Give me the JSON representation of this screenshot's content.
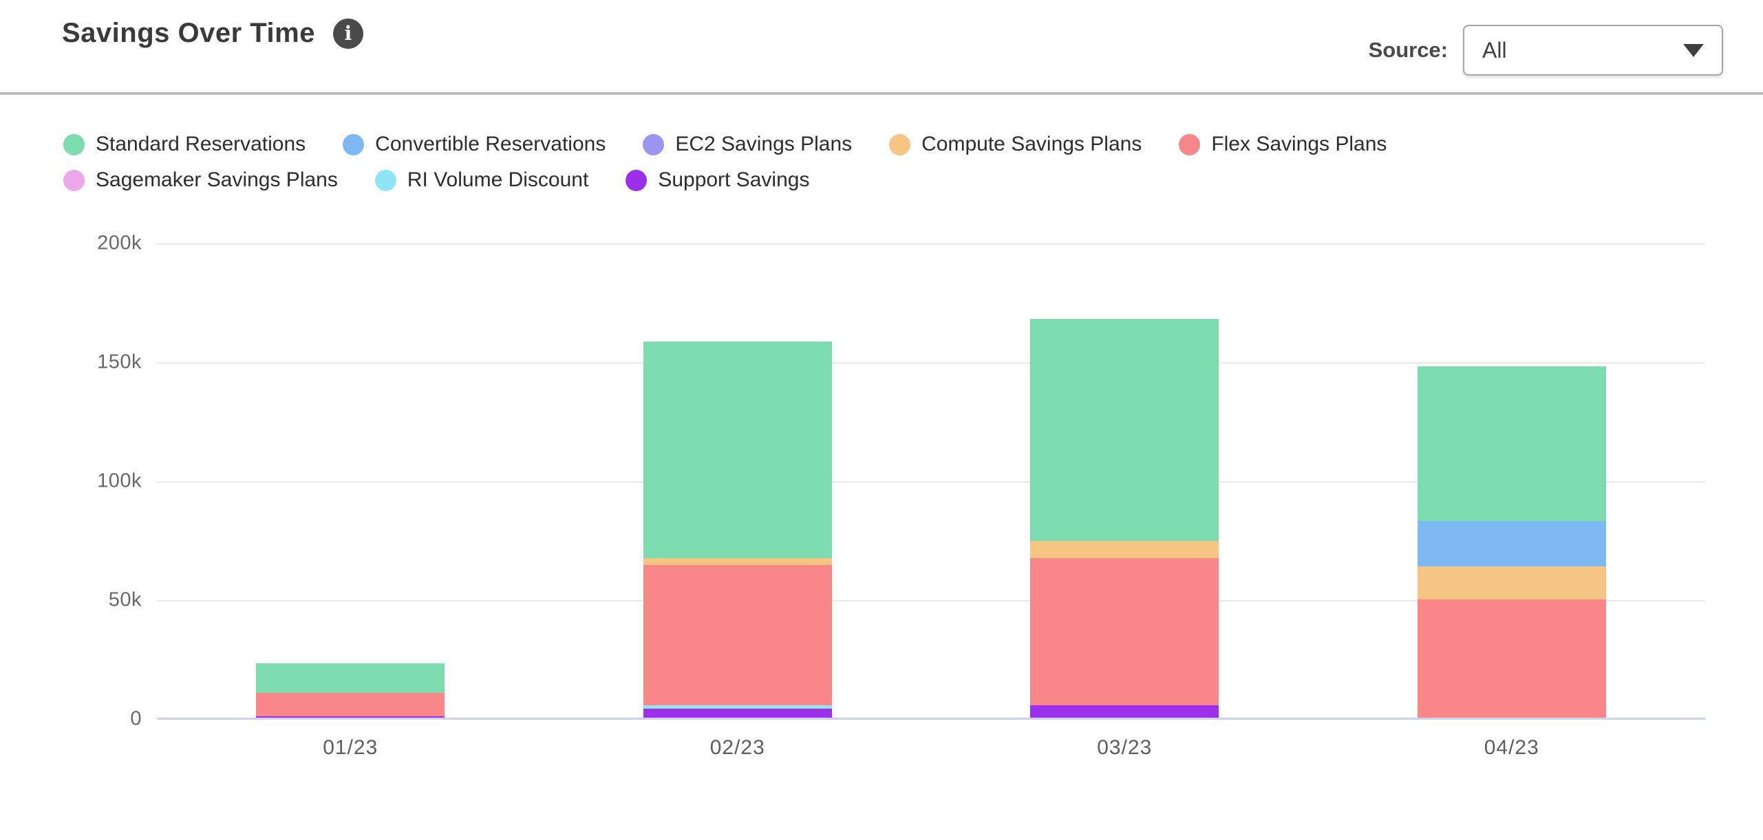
{
  "header": {
    "title": "Savings Over Time",
    "source_label": "Source:",
    "source_value": "All"
  },
  "legend_order": [
    "Standard Reservations",
    "Convertible Reservations",
    "EC2 Savings Plans",
    "Compute Savings Plans",
    "Flex Savings Plans",
    "Sagemaker Savings Plans",
    "RI Volume Discount",
    "Support Savings"
  ],
  "chart_data": {
    "type": "bar",
    "stacked": true,
    "title": "Savings Over Time",
    "categories": [
      "01/23",
      "02/23",
      "03/23",
      "04/23"
    ],
    "values_unit": "thousands",
    "stack_order": "bottom-to-top",
    "series": [
      {
        "name": "Support Savings",
        "color": "#9b2feb",
        "values": [
          0.8,
          4,
          5.5,
          0
        ]
      },
      {
        "name": "RI Volume Discount",
        "color": "#8fe5f5",
        "values": [
          0,
          1.5,
          0,
          0
        ]
      },
      {
        "name": "Flex Savings Plans",
        "color": "#f98789",
        "values": [
          10,
          59,
          62,
          50
        ]
      },
      {
        "name": "Compute Savings Plans",
        "color": "#f6c583",
        "values": [
          0,
          3,
          7,
          14
        ]
      },
      {
        "name": "Convertible Reservations",
        "color": "#7db8f2",
        "values": [
          0,
          0,
          0,
          19
        ]
      },
      {
        "name": "EC2 Savings Plans",
        "color": "#9b95f2",
        "values": [
          0,
          0,
          0,
          0
        ]
      },
      {
        "name": "Sagemaker Savings Plans",
        "color": "#efa7ec",
        "values": [
          0,
          0,
          0,
          0
        ]
      },
      {
        "name": "Standard Reservations",
        "color": "#7cdcb0",
        "values": [
          12.4,
          91,
          93.5,
          65
        ]
      }
    ],
    "totals_thousands": [
      23.2,
      158.5,
      168,
      148
    ],
    "y_ticks": [
      "200k",
      "150k",
      "100k",
      "50k",
      "0"
    ],
    "ylim_thousands": [
      0,
      200
    ],
    "grid": true,
    "legend_position": "top",
    "xlabel": "",
    "ylabel": ""
  },
  "colors": {
    "axis_line": "#cdd2ee",
    "gridline": "#e9e9e9",
    "divider": "#bdbdbd",
    "title_text": "#3a3a3a",
    "tick_text": "#686868"
  }
}
